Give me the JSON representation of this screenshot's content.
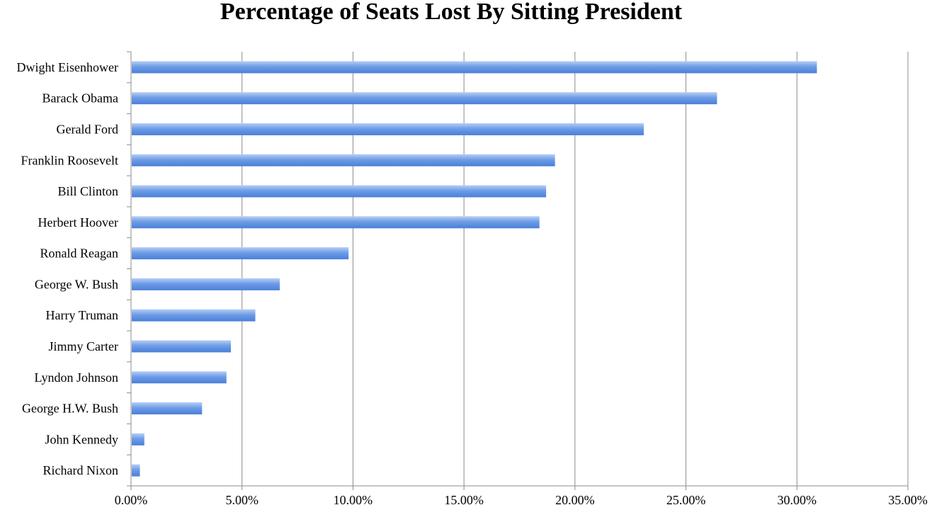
{
  "chart_data": {
    "type": "bar",
    "orientation": "horizontal",
    "title": "Percentage of Seats Lost By Sitting President",
    "xlabel": "",
    "ylabel": "",
    "categories": [
      "Dwight Eisenhower",
      "Barack Obama",
      "Gerald Ford",
      "Franklin Roosevelt",
      "Bill Clinton",
      "Herbert Hoover",
      "Ronald Reagan",
      "George W. Bush",
      "Harry Truman",
      "Jimmy Carter",
      "Lyndon Johnson",
      "George H.W. Bush",
      "John Kennedy",
      "Richard Nixon"
    ],
    "values": [
      30.9,
      26.4,
      23.1,
      19.1,
      18.7,
      18.4,
      9.8,
      6.7,
      5.6,
      4.5,
      4.3,
      3.2,
      0.6,
      0.4
    ],
    "xlim": [
      0,
      35
    ],
    "x_ticks": [
      0,
      5,
      10,
      15,
      20,
      25,
      30,
      35
    ],
    "x_tick_labels": [
      "0.00%",
      "5.00%",
      "10.00%",
      "15.00%",
      "20.00%",
      "25.00%",
      "30.00%",
      "35.00%"
    ],
    "grid": "vertical",
    "legend": "none",
    "bar_color": "#5b8ee0",
    "bar_color_light": "#b6cff5"
  }
}
